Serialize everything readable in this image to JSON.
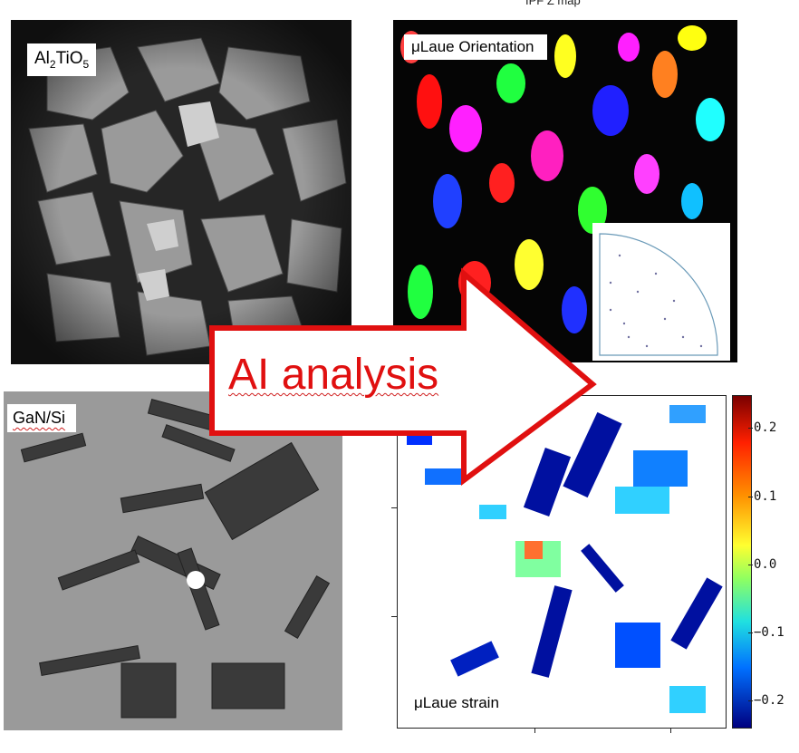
{
  "panels": {
    "al2tio5": {
      "label_main": "Al",
      "sub1": "2",
      "mid": "TiO",
      "sub2": "5"
    },
    "gan": {
      "label": "GaN/Si"
    },
    "orientation": {
      "label": "μLaue Orientation",
      "map_title": "IPF Z map"
    },
    "strain": {
      "label": "μLaue strain",
      "partial_title": "%)"
    }
  },
  "arrow": {
    "text": "AI analysis",
    "color": "#e01010"
  },
  "colorbar": {
    "ticks": [
      "0.2",
      "0.1",
      "0.0",
      "−0.1",
      "−0.2"
    ]
  }
}
